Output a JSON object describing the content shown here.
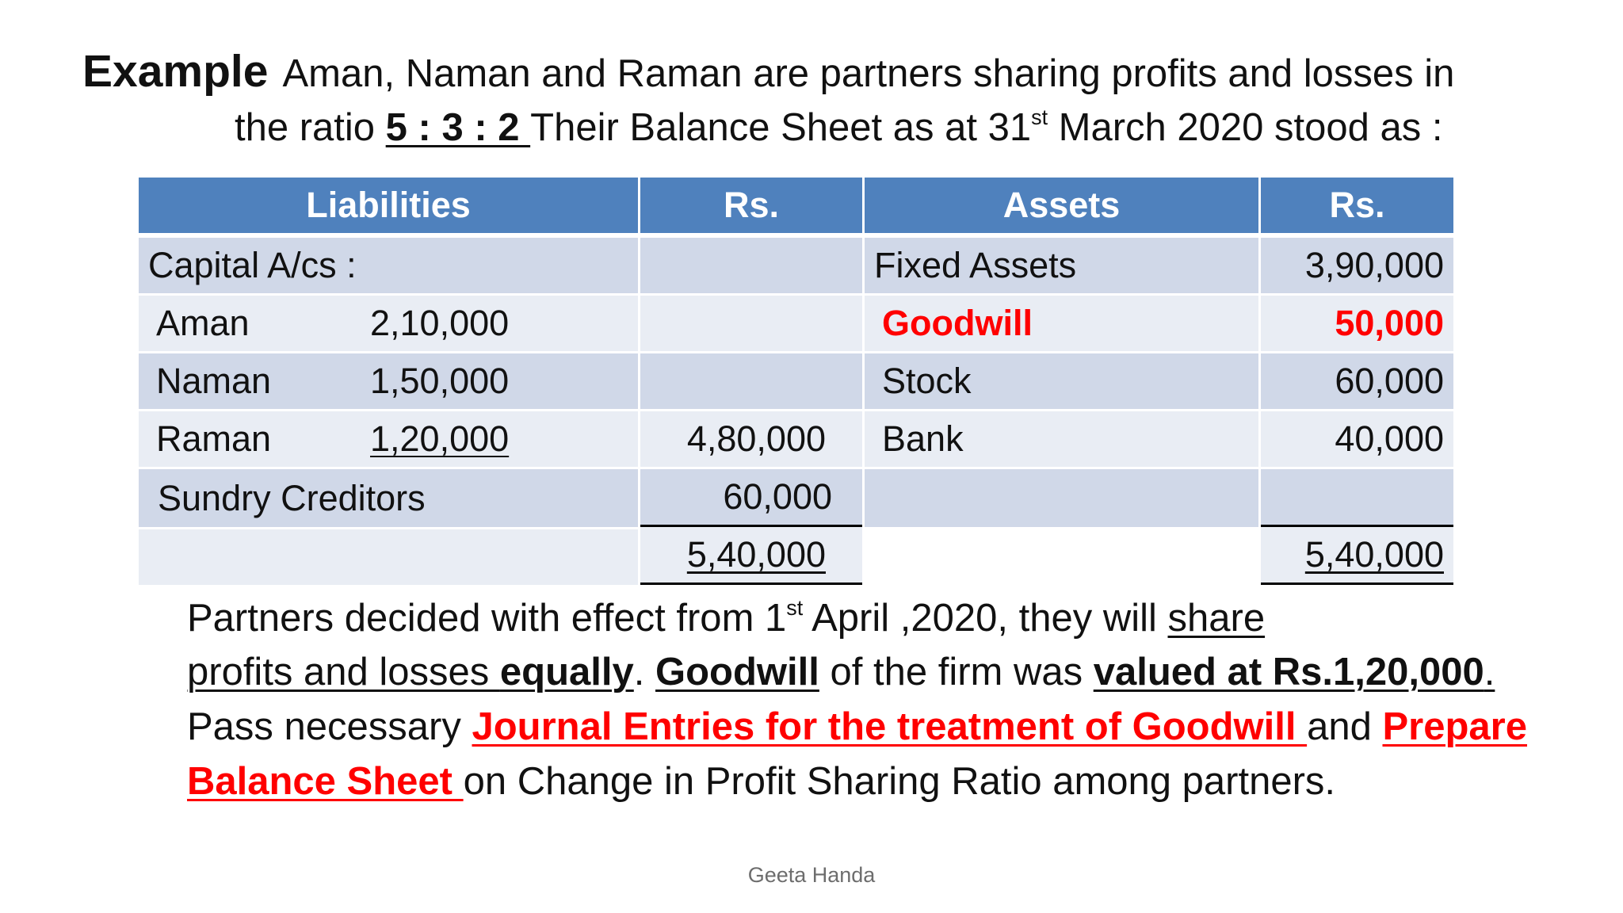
{
  "heading": {
    "label": "Example",
    "line1": "Aman, Naman and Raman  are partners sharing profits and losses in",
    "line2_pre": "the ratio ",
    "ratio": "5 : 3 : 2 ",
    "line2_post_a": "Their Balance Sheet as at 31",
    "line2_sup": "st",
    "line2_post_b": " March 2020 stood as :"
  },
  "table": {
    "headers": [
      "Liabilities",
      "Rs.",
      "Assets",
      "Rs."
    ],
    "capital_label": "Capital A/cs :",
    "partners": [
      {
        "name": "Aman",
        "amount": "2,10,000"
      },
      {
        "name": "Naman",
        "amount": "1,50,000"
      },
      {
        "name": "Raman",
        "amount": "1,20,000"
      }
    ],
    "capital_total": "4,80,000",
    "creditors_label": "Sundry Creditors",
    "creditors_amount": "60,000",
    "liabilities_total": "5,40,000",
    "assets": [
      {
        "name": "Fixed Assets",
        "amount": "3,90,000"
      },
      {
        "name": "Goodwill",
        "amount": "50,000"
      },
      {
        "name": "Stock",
        "amount": "60,000"
      },
      {
        "name": "Bank",
        "amount": "40,000"
      }
    ],
    "assets_total": "5,40,000"
  },
  "para": {
    "l1_a": "Partners decided with effect from 1",
    "l1_sup": "st",
    "l1_b": " April ,2020, they will ",
    "l1_u": "share",
    "l2_u": "profits and losses  ",
    "l2_bold": "equally",
    "l2_dot": ". ",
    "l2_goodwill": "Goodwill",
    "l2_mid": " of the firm was ",
    "l2_valued": "valued at Rs.1,20,000",
    "l2_end": ".",
    "l3_a": "Pass necessary ",
    "l3_red": "Journal Entries for the treatment of Goodwill ",
    "l3_and": " and ",
    "l3_prep": "Prepare",
    "l4_red": "Balance Sheet ",
    "l4_rest": "on Change in Profit Sharing Ratio among partners."
  },
  "footer": "Geeta Handa",
  "colors": {
    "header_blue": "#4f81bd",
    "row_dark": "#d0d8e8",
    "row_light": "#e9edf4",
    "highlight_red": "#ff0000"
  }
}
